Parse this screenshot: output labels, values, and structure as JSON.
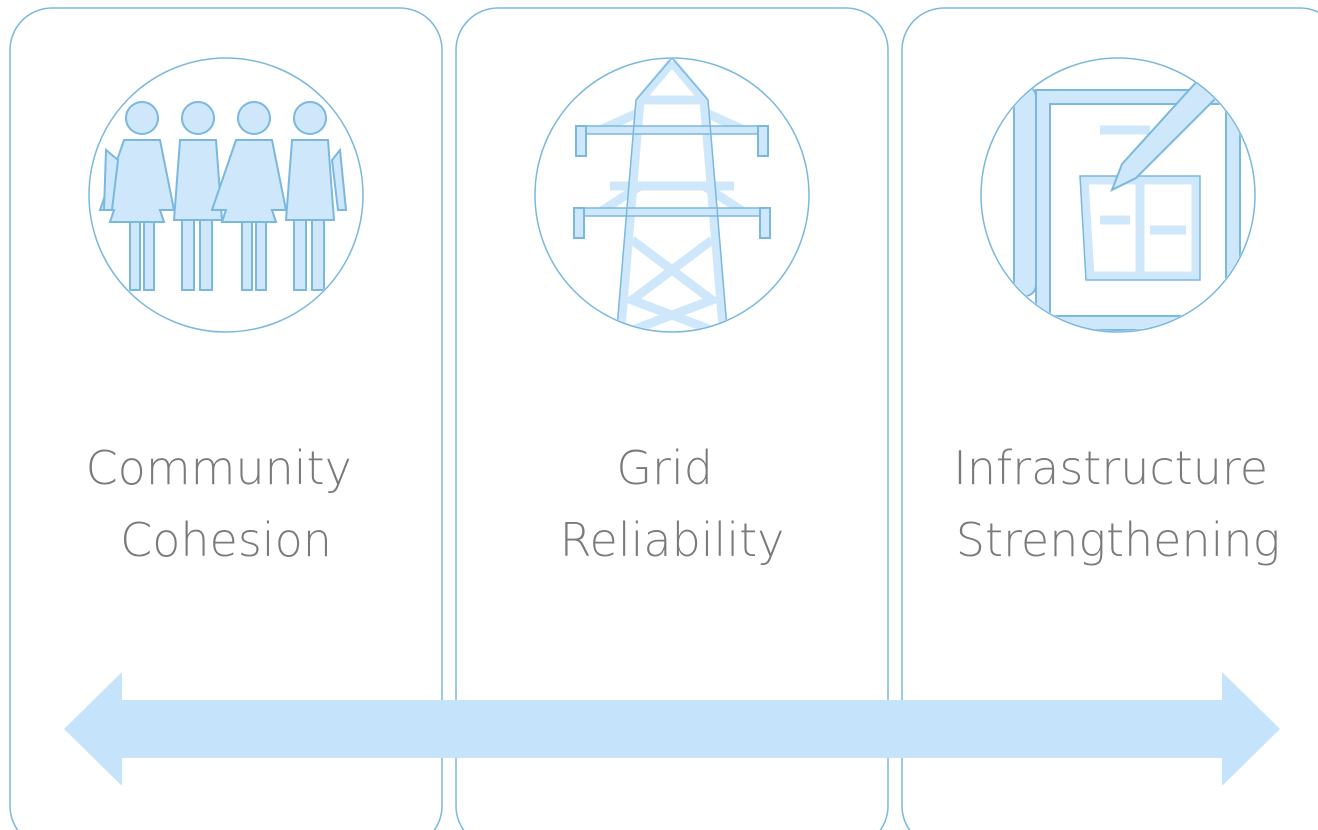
{
  "cards": [
    {
      "title": [
        "Community",
        "Cohesion"
      ]
    },
    {
      "title": [
        "Grid",
        "Reliability"
      ]
    },
    {
      "title": [
        "Infrastructure",
        "Strengthening"
      ]
    }
  ]
}
